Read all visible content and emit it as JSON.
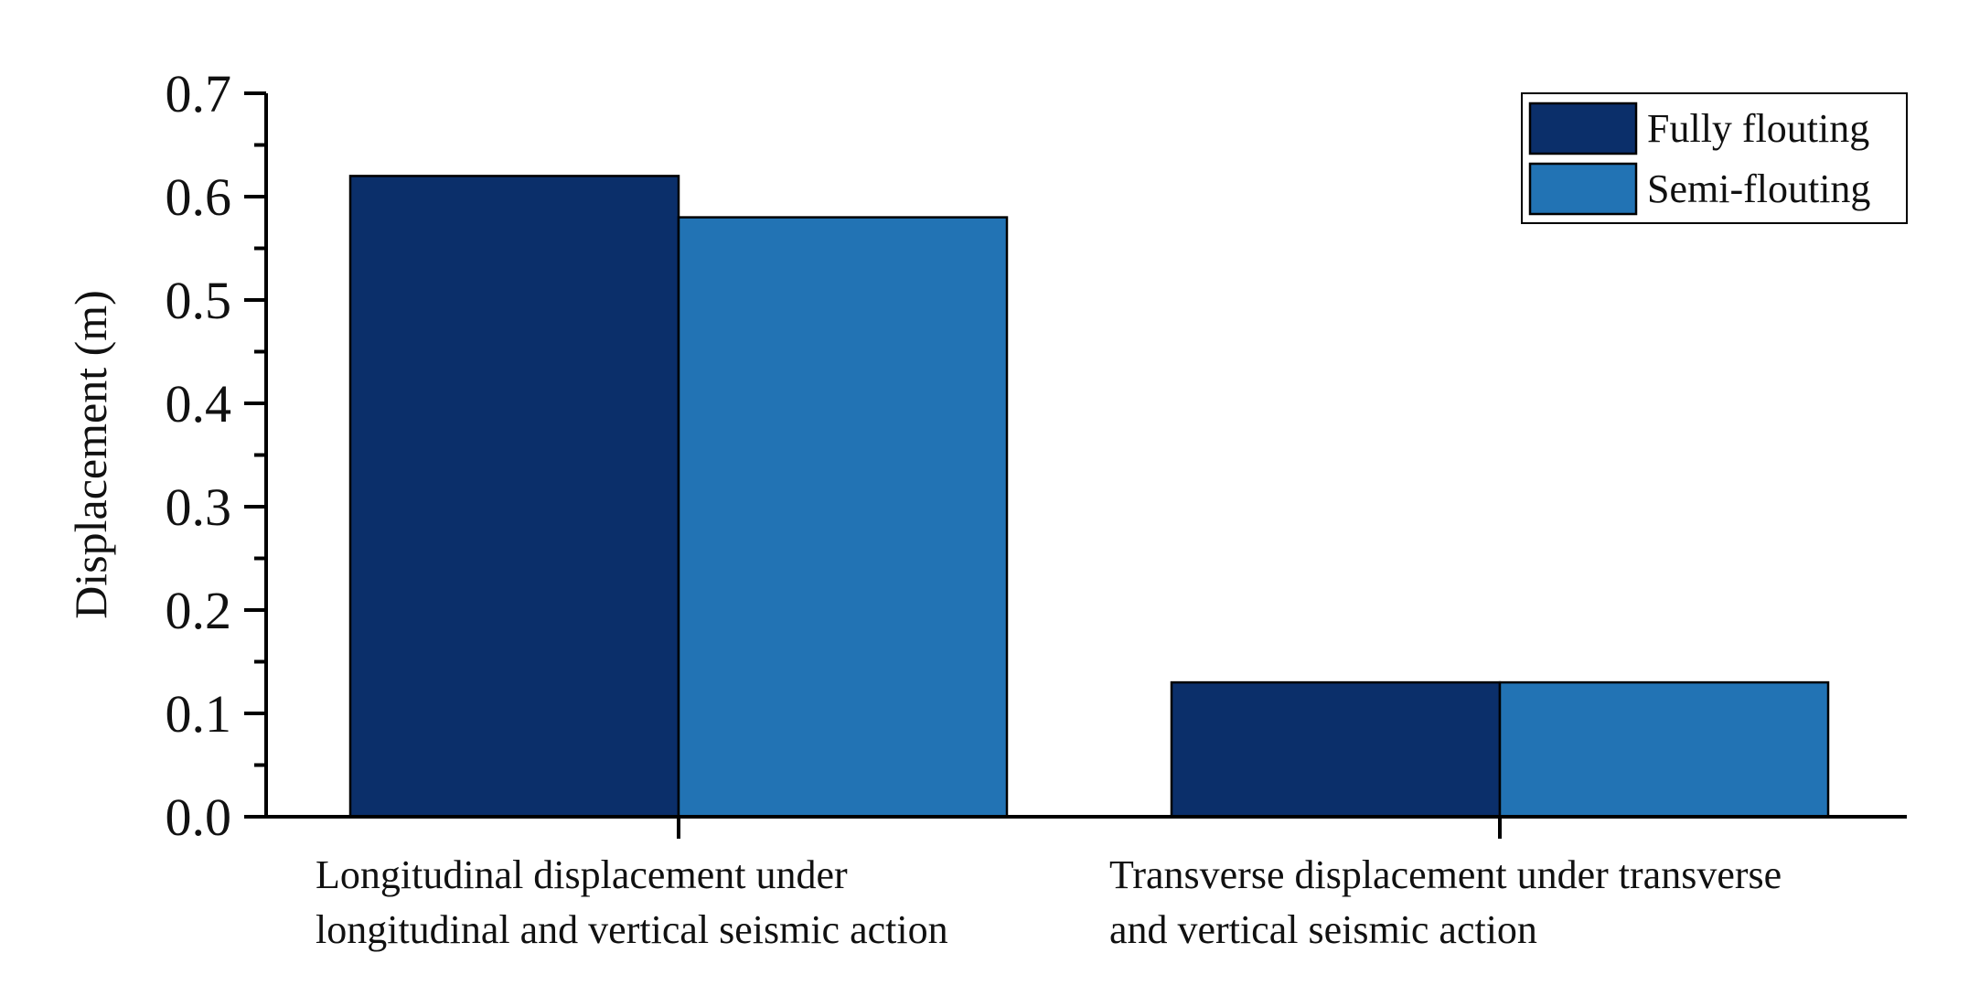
{
  "chart_data": {
    "type": "bar",
    "title": "",
    "xlabel": "",
    "ylabel": "Displacement (m)",
    "ylim": [
      0,
      0.7
    ],
    "yticks": [
      "0.0",
      "0.1",
      "0.2",
      "0.3",
      "0.4",
      "0.5",
      "0.6",
      "0.7"
    ],
    "categories": [
      [
        "Longitudinal displacement under",
        "longitudinal and vertical seismic action"
      ],
      [
        "Transverse displacement under transverse",
        "and vertical seismic action"
      ]
    ],
    "series": [
      {
        "name": "Fully flouting",
        "color": "#0b2f6a",
        "values": [
          0.62,
          0.13
        ]
      },
      {
        "name": "Semi-flouting",
        "color": "#2273b4",
        "values": [
          0.58,
          0.13
        ]
      }
    ],
    "grid": false,
    "legend_position": "top-right"
  }
}
